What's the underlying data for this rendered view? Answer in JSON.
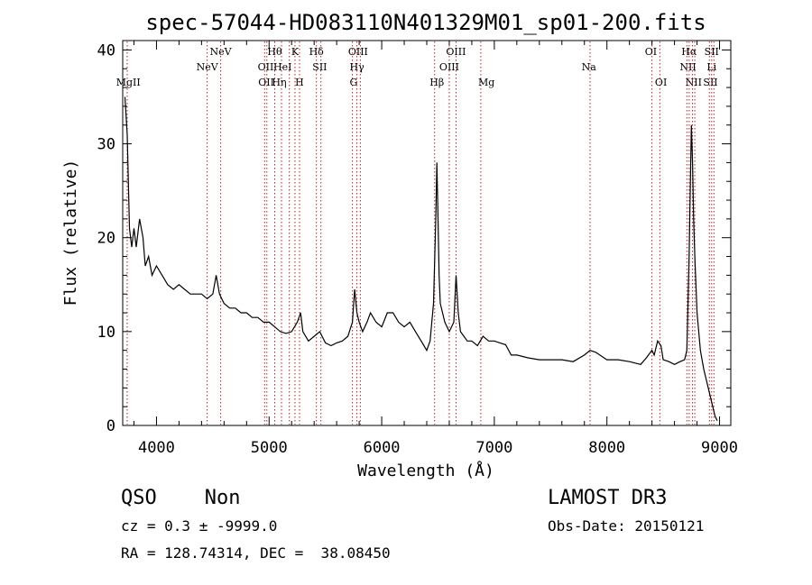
{
  "chart_data": {
    "type": "line",
    "title": "spec-57044-HD083110N401329M01_sp01-200.fits",
    "xlabel": "Wavelength (Å)",
    "ylabel": "Flux (relative)",
    "xlim": [
      3700,
      9100
    ],
    "ylim": [
      0,
      41
    ],
    "x_ticks": [
      4000,
      5000,
      6000,
      7000,
      8000,
      9000
    ],
    "y_ticks": [
      0,
      10,
      20,
      30,
      40
    ],
    "grid": false,
    "line_color": "#000000",
    "marker_color": "#b22222",
    "series": [
      {
        "x": [
          3720,
          3740,
          3760,
          3780,
          3800,
          3820,
          3850,
          3880,
          3900,
          3930,
          3960,
          4000,
          4050,
          4100,
          4150,
          4200,
          4250,
          4300,
          4350,
          4400,
          4450,
          4500,
          4530,
          4560,
          4600,
          4650,
          4700,
          4750,
          4800,
          4850,
          4900,
          4950,
          5000,
          5050,
          5100,
          5150,
          5200,
          5250,
          5280,
          5300,
          5350,
          5400,
          5450,
          5500,
          5550,
          5600,
          5650,
          5700,
          5740,
          5760,
          5780,
          5800,
          5830,
          5870,
          5900,
          5950,
          6000,
          6050,
          6100,
          6150,
          6200,
          6250,
          6300,
          6350,
          6400,
          6430,
          6460,
          6480,
          6490,
          6500,
          6510,
          6520,
          6540,
          6560,
          6600,
          6640,
          6660,
          6680,
          6700,
          6730,
          6760,
          6800,
          6850,
          6900,
          6950,
          7000,
          7050,
          7100,
          7150,
          7200,
          7300,
          7400,
          7500,
          7600,
          7700,
          7800,
          7850,
          7900,
          8000,
          8100,
          8200,
          8300,
          8350,
          8400,
          8420,
          8450,
          8480,
          8500,
          8550,
          8600,
          8650,
          8690,
          8710,
          8730,
          8750,
          8760,
          8770,
          8780,
          8800,
          8830,
          8860,
          8880,
          8900,
          8920,
          8940,
          8960,
          8980
        ],
        "y": [
          35,
          31,
          21,
          19,
          21,
          19,
          22,
          20,
          17,
          18,
          16,
          17,
          16,
          15,
          14.5,
          15,
          14.5,
          14,
          14,
          14,
          13.5,
          14,
          16,
          14,
          13,
          12.5,
          12.5,
          12,
          12,
          11.5,
          11.5,
          11,
          11,
          10.5,
          10,
          9.8,
          10,
          11,
          12,
          10,
          9,
          9.5,
          10,
          8.8,
          8.5,
          8.8,
          9,
          9.5,
          11,
          14.5,
          12,
          11,
          10,
          11,
          12,
          11,
          10.5,
          12,
          12,
          11,
          10.5,
          11,
          10,
          9,
          8,
          9,
          13,
          22,
          28,
          22,
          16,
          13,
          12,
          11,
          10,
          11,
          16,
          12,
          10,
          9.5,
          9,
          9,
          8.5,
          9.5,
          9,
          9,
          8.8,
          8.6,
          7.5,
          7.5,
          7.2,
          7,
          7,
          7,
          6.8,
          7.5,
          8,
          7.8,
          7,
          7,
          6.8,
          6.5,
          7.2,
          8,
          7.5,
          9,
          8.5,
          7,
          6.8,
          6.5,
          6.8,
          7,
          8,
          18,
          32,
          28,
          22,
          18,
          12,
          8,
          6,
          5,
          4,
          3,
          2,
          1,
          0.5
        ]
      }
    ],
    "line_labels": [
      {
        "name": "MgII",
        "x": 3750,
        "row": 3
      },
      {
        "name": "NeV",
        "x": 4450,
        "row": 2
      },
      {
        "name": "NeV",
        "x": 4570,
        "row": 1
      },
      {
        "name": "OII",
        "x": 4970,
        "row": 2
      },
      {
        "name": "OII",
        "x": 4975,
        "row": 3
      },
      {
        "name": "Hθ",
        "x": 5050,
        "row": 1
      },
      {
        "name": "HeI",
        "x": 5120,
        "row": 2
      },
      {
        "name": "Hη",
        "x": 5090,
        "row": 3
      },
      {
        "name": "K",
        "x": 5230,
        "row": 1
      },
      {
        "name": "H",
        "x": 5270,
        "row": 3
      },
      {
        "name": "Hδ",
        "x": 5420,
        "row": 1
      },
      {
        "name": "SII",
        "x": 5450,
        "row": 2
      },
      {
        "name": "OIII",
        "x": 5790,
        "row": 1
      },
      {
        "name": "Hγ",
        "x": 5780,
        "row": 2
      },
      {
        "name": "G",
        "x": 5750,
        "row": 3
      },
      {
        "name": "Hβ",
        "x": 6490,
        "row": 3
      },
      {
        "name": "OIII",
        "x": 6660,
        "row": 1
      },
      {
        "name": "OIII",
        "x": 6600,
        "row": 2
      },
      {
        "name": "Mg",
        "x": 6930,
        "row": 3
      },
      {
        "name": "Na",
        "x": 7840,
        "row": 2
      },
      {
        "name": "OI",
        "x": 8390,
        "row": 1
      },
      {
        "name": "OI",
        "x": 8480,
        "row": 3
      },
      {
        "name": "Hα",
        "x": 8730,
        "row": 1
      },
      {
        "name": "NII",
        "x": 8720,
        "row": 2
      },
      {
        "name": "NII",
        "x": 8770,
        "row": 3
      },
      {
        "name": "SII",
        "x": 8930,
        "row": 1
      },
      {
        "name": "Li",
        "x": 8930,
        "row": 2
      },
      {
        "name": "SII",
        "x": 8920,
        "row": 3
      }
    ],
    "marker_lines_x": [
      3740,
      4450,
      4570,
      4960,
      4980,
      5050,
      5110,
      5180,
      5230,
      5270,
      5420,
      5460,
      5740,
      5780,
      5810,
      6470,
      6600,
      6660,
      6880,
      7850,
      8400,
      8470,
      8710,
      8730,
      8760,
      8780,
      8910,
      8930,
      8950
    ]
  },
  "info": {
    "class_line": "QSO    Non",
    "survey": "LAMOST DR3",
    "cz_line": "cz = 0.3 ± -9999.0",
    "obs_date": "Obs-Date: 20150121",
    "coords_line": "RA = 128.74314, DEC =  38.08450"
  }
}
